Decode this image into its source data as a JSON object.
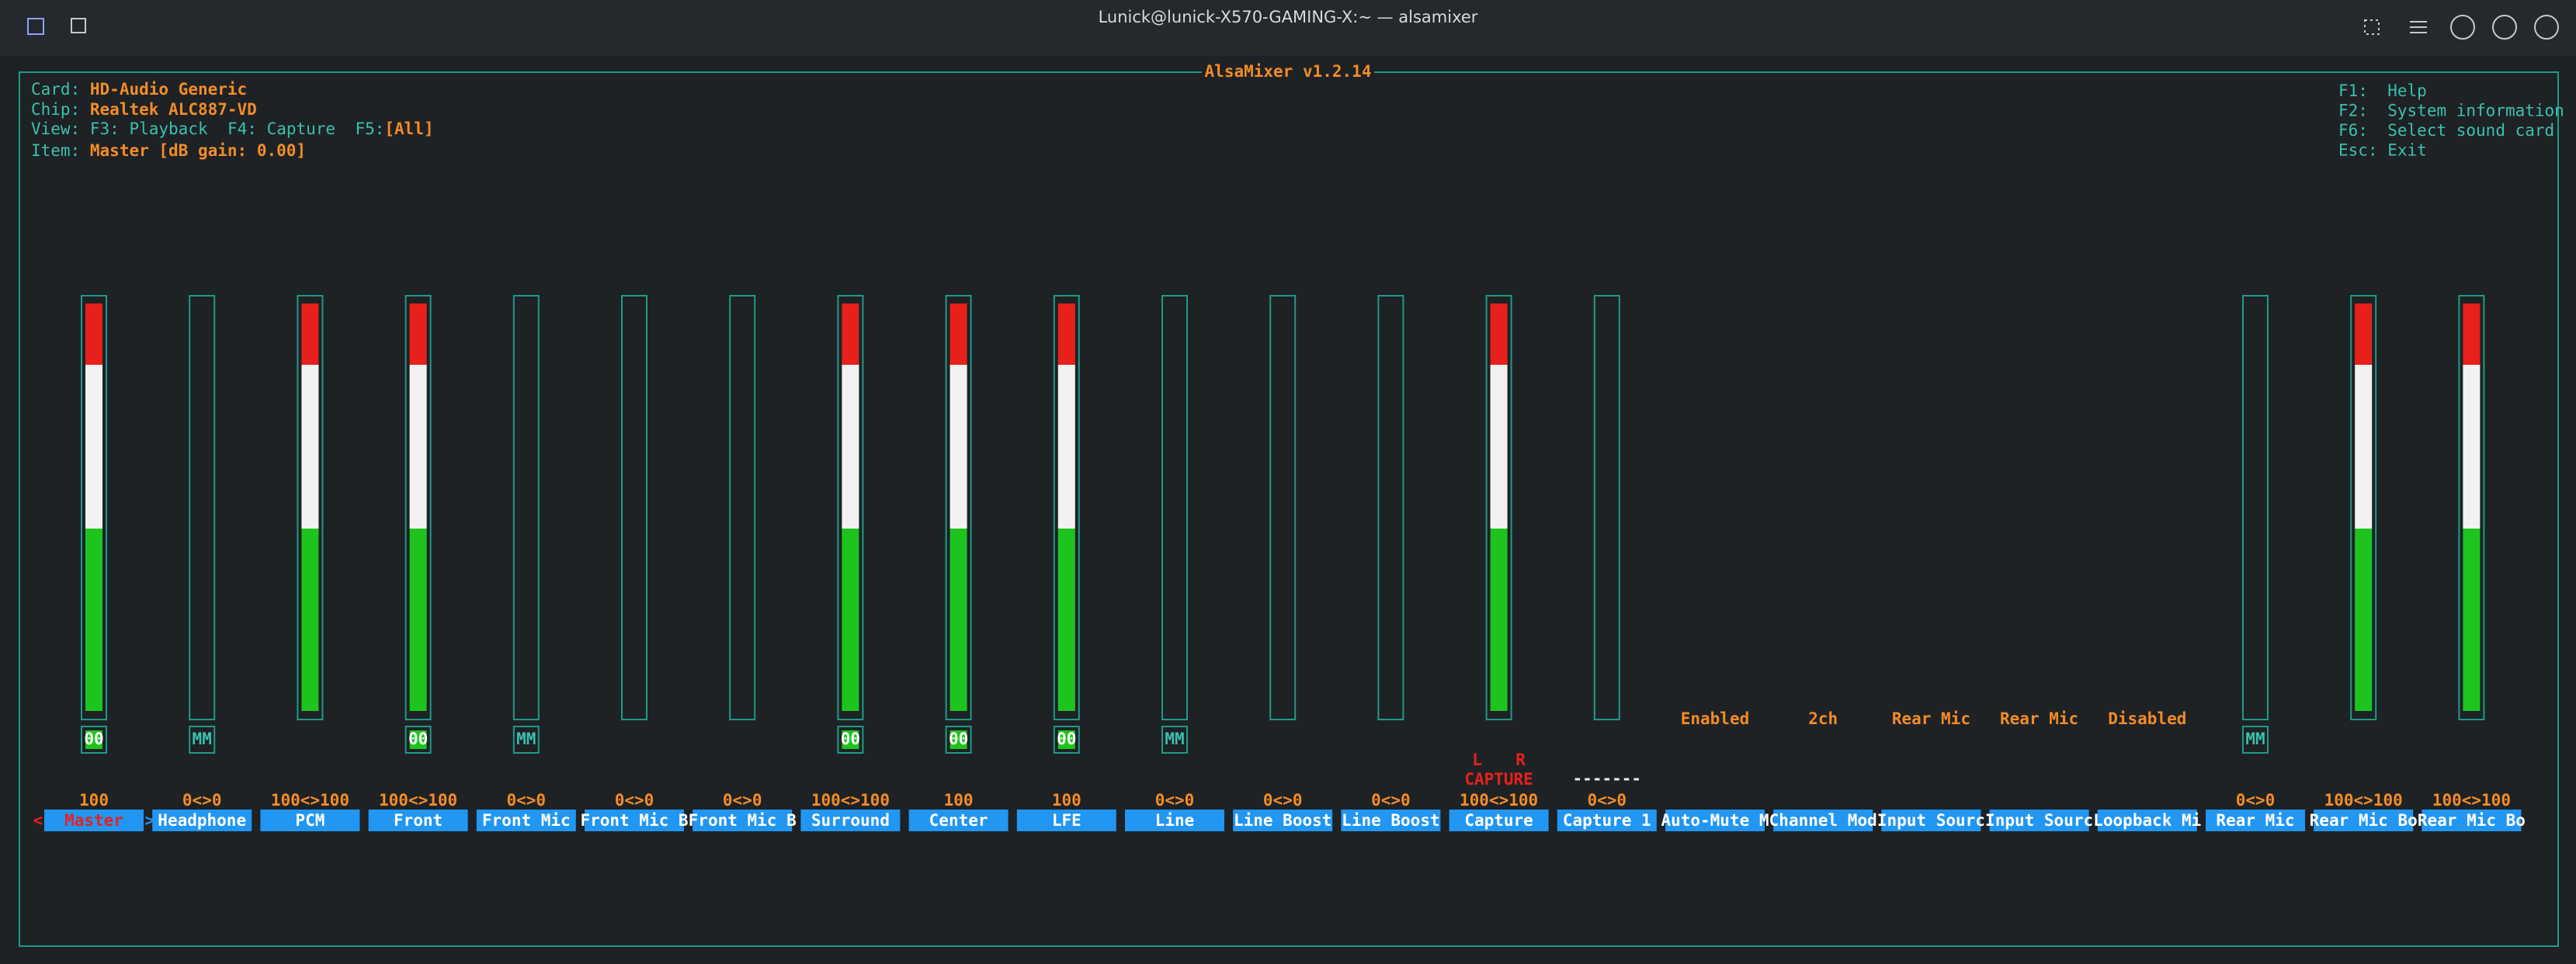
{
  "window": {
    "title": "Lunick@lunick-X570-GAMING-X:~ — alsamixer"
  },
  "mixer": {
    "title": "AlsaMixer v1.2.14",
    "card": {
      "label": "Card:",
      "value": "HD-Audio Generic"
    },
    "chip": {
      "label": "Chip:",
      "value": "Realtek ALC887-VD"
    },
    "view": {
      "label": "View:",
      "options": [
        "F3: Playback",
        "F4: Capture",
        "F5:"
      ],
      "value": "[All]"
    },
    "item": {
      "label": "Item:",
      "value": "Master [dB gain: 0.00]"
    },
    "help": [
      {
        "key": "F1:",
        "text": "Help"
      },
      {
        "key": "F2:",
        "text": "System information"
      },
      {
        "key": "F6:",
        "text": "Select sound card"
      },
      {
        "key": "Esc:",
        "text": "Exit"
      }
    ],
    "controls": [
      {
        "name": "Master",
        "value_label": "100",
        "bar": "full",
        "mute": "00",
        "selected": true
      },
      {
        "name": "Headphone",
        "value_label": "0<>0",
        "bar": "empty",
        "mute": "MM"
      },
      {
        "name": "PCM",
        "value_label": "100<>100",
        "bar": "full"
      },
      {
        "name": "Front",
        "value_label": "100<>100",
        "bar": "full",
        "mute": "00"
      },
      {
        "name": "Front Mic",
        "value_label": "0<>0",
        "bar": "empty",
        "mute": "MM"
      },
      {
        "name": "Front Mic B",
        "value_label": "0<>0",
        "bar": "empty"
      },
      {
        "name": "Front Mic B",
        "value_label": "0<>0",
        "bar": "empty"
      },
      {
        "name": "Surround",
        "value_label": "100<>100",
        "bar": "full",
        "mute": "00"
      },
      {
        "name": "Center",
        "value_label": "100",
        "bar": "full",
        "mute": "00"
      },
      {
        "name": "LFE",
        "value_label": "100",
        "bar": "full",
        "mute": "00"
      },
      {
        "name": "Line",
        "value_label": "0<>0",
        "bar": "empty",
        "mute": "MM"
      },
      {
        "name": "Line Boost",
        "value_label": "0<>0",
        "bar": "empty"
      },
      {
        "name": "Line Boost",
        "value_label": "0<>0",
        "bar": "empty"
      },
      {
        "name": "Capture",
        "value_label": "100<>100",
        "bar": "full",
        "capture_channels": [
          "L",
          "R"
        ],
        "capture_label": "CAPTURE"
      },
      {
        "name": "Capture 1",
        "value_label": "0<>0",
        "bar": "empty",
        "capture_label": "-------"
      },
      {
        "name": "Auto-Mute M",
        "enum": "Enabled"
      },
      {
        "name": "Channel Mod",
        "enum": "2ch"
      },
      {
        "name": "Input Sourc",
        "enum": "Rear Mic"
      },
      {
        "name": "Input Sourc",
        "enum": "Rear Mic"
      },
      {
        "name": "Loopback Mi",
        "enum": "Disabled"
      },
      {
        "name": "Rear Mic",
        "value_label": "0<>0",
        "bar": "empty",
        "mute": "MM"
      },
      {
        "name": "Rear Mic Bo",
        "value_label": "100<>100",
        "bar": "full"
      },
      {
        "name": "Rear Mic Bo",
        "value_label": "100<>100",
        "bar": "full"
      }
    ]
  }
}
